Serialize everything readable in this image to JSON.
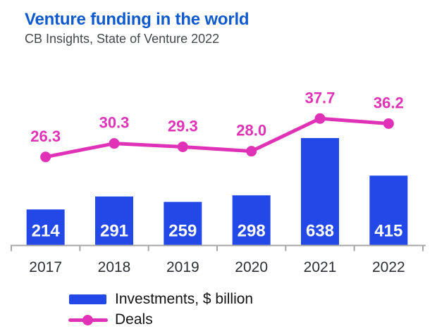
{
  "header": {
    "title": "Venture funding in the world",
    "subtitle": "CB Insights, State of Venture 2022"
  },
  "legend": {
    "investments_label": "Investments, $ billion",
    "deals_label": "Deals"
  },
  "colors": {
    "bar_blue": "#2249e8",
    "deals_magenta": "#e032b6",
    "title_blue": "#0e59cc",
    "subtitle_gray": "#45484c",
    "axis_gray": "#a6a6a6",
    "year_label_gray": "#2c2f33",
    "bar_value_white": "#ffffff",
    "legend_text": "#141414"
  },
  "chart_data": {
    "type": "bar",
    "title": "Venture funding in the world",
    "subtitle": "CB Insights, State of Venture 2022",
    "categories": [
      "2017",
      "2018",
      "2019",
      "2020",
      "2021",
      "2022"
    ],
    "series": [
      {
        "name": "Investments, $ billion",
        "type": "bar",
        "values": [
          214,
          291,
          259,
          298,
          638,
          415
        ]
      },
      {
        "name": "Deals",
        "type": "line",
        "values": [
          26.3,
          30.3,
          29.3,
          28.0,
          37.7,
          36.2
        ]
      }
    ],
    "value_labels": true,
    "grid": false,
    "legend_position": "bottom-left",
    "xlabel": "",
    "ylabel": ""
  }
}
